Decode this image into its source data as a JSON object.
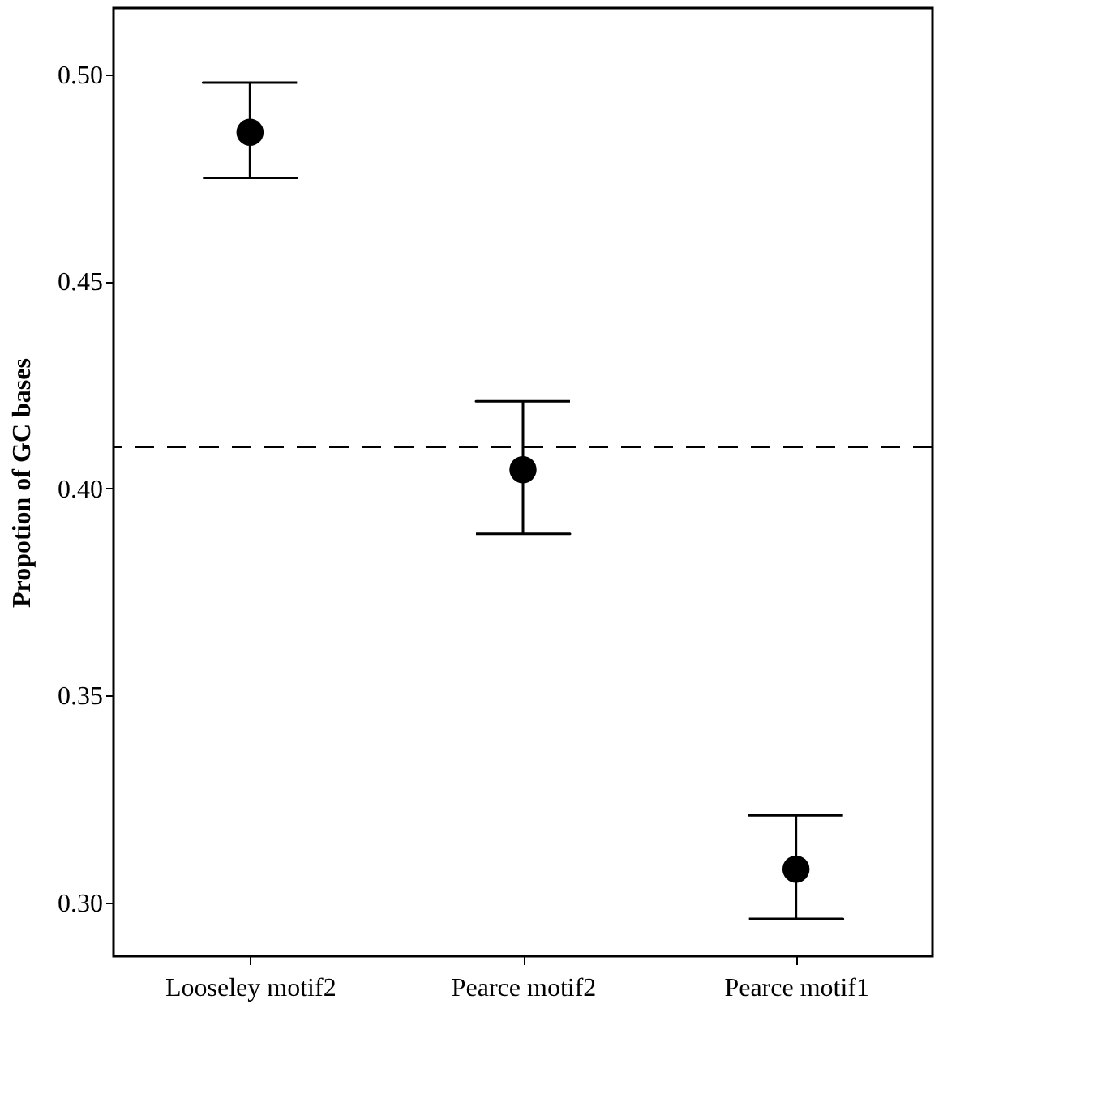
{
  "chart_data": {
    "type": "scatter",
    "ylabel": "Propotion of GC bases",
    "categories": [
      "Looseley motif2",
      "Pearce motif2",
      "Pearce motif1"
    ],
    "color": "#000000",
    "values": [
      0.486,
      0.4045,
      0.308
    ],
    "errors": [
      [
        0.475,
        0.498
      ],
      [
        0.389,
        0.421
      ],
      [
        0.296,
        0.321
      ]
    ],
    "marker": "circle",
    "ylim": [
      0.287,
      0.516
    ],
    "yticks": [
      {
        "value": 0.3,
        "label": "0.30"
      },
      0.35,
      {
        "value": 0.4,
        "label": "0.40"
      },
      0.45,
      {
        "value": 0.5,
        "label": "0.50"
      }
    ],
    "ref_lines": [
      {
        "axis": "y",
        "value": 0.41,
        "line_style": "dashed",
        "color": "#000000"
      }
    ],
    "grid": false
  }
}
